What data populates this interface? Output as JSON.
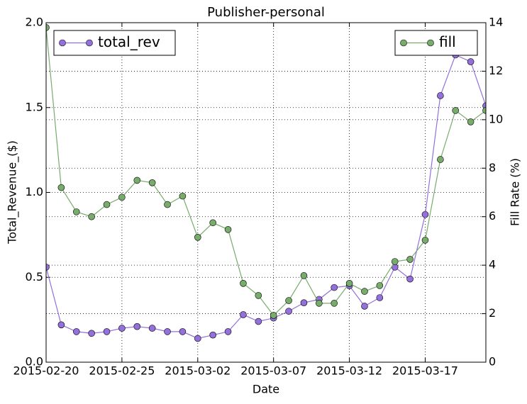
{
  "chart_data": {
    "type": "line",
    "title": "Publisher-personal",
    "xlabel": "Date",
    "ylabel": "Total_Revenue_($)",
    "y2label": "Fill Rate (%)",
    "x": [
      "2015-02-20",
      "2015-02-21",
      "2015-02-22",
      "2015-02-23",
      "2015-02-24",
      "2015-02-25",
      "2015-02-26",
      "2015-02-27",
      "2015-02-28",
      "2015-03-01",
      "2015-03-02",
      "2015-03-03",
      "2015-03-04",
      "2015-03-05",
      "2015-03-06",
      "2015-03-07",
      "2015-03-08",
      "2015-03-09",
      "2015-03-10",
      "2015-03-11",
      "2015-03-12",
      "2015-03-13",
      "2015-03-14",
      "2015-03-15",
      "2015-03-16",
      "2015-03-17",
      "2015-03-18",
      "2015-03-19",
      "2015-03-20",
      "2015-03-21"
    ],
    "xlim": [
      "2015-02-20",
      "2015-03-21"
    ],
    "xticks": [
      "2015-02-20",
      "2015-02-25",
      "2015-03-02",
      "2015-03-07",
      "2015-03-12",
      "2015-03-17"
    ],
    "ylim": [
      0,
      2
    ],
    "yticks": [
      {
        "value": 0,
        "label": "0.0"
      },
      0.5,
      {
        "value": 1,
        "label": "1.0"
      },
      1.5,
      {
        "value": 2,
        "label": "2.0"
      }
    ],
    "y2lim": [
      0,
      14
    ],
    "y2ticks": [
      0,
      2,
      4,
      6,
      8,
      10,
      12,
      14
    ],
    "grid": true,
    "series": [
      {
        "name": "total_rev",
        "color": "#9370db",
        "legend": "upper left",
        "values": [
          0.56,
          0.22,
          0.18,
          0.17,
          0.18,
          0.2,
          0.21,
          0.2,
          0.18,
          0.18,
          0.14,
          0.16,
          0.18,
          0.28,
          0.24,
          0.26,
          0.3,
          0.35,
          0.37,
          0.44,
          0.45,
          0.33,
          0.38,
          0.56,
          0.49,
          0.87,
          1.57,
          1.81,
          1.77,
          1.51
        ]
      },
      {
        "name": "fill",
        "color": "#77ac6b",
        "axis": "y2",
        "legend": "upper right",
        "values": [
          13.8,
          7.2,
          6.2,
          6.0,
          6.5,
          6.8,
          7.5,
          7.4,
          6.5,
          6.85,
          5.15,
          5.75,
          5.47,
          3.25,
          2.75,
          1.93,
          2.54,
          3.57,
          2.43,
          2.43,
          3.25,
          2.92,
          3.16,
          4.15,
          4.24,
          5.03,
          8.36,
          10.38,
          9.91,
          10.38
        ]
      }
    ]
  }
}
